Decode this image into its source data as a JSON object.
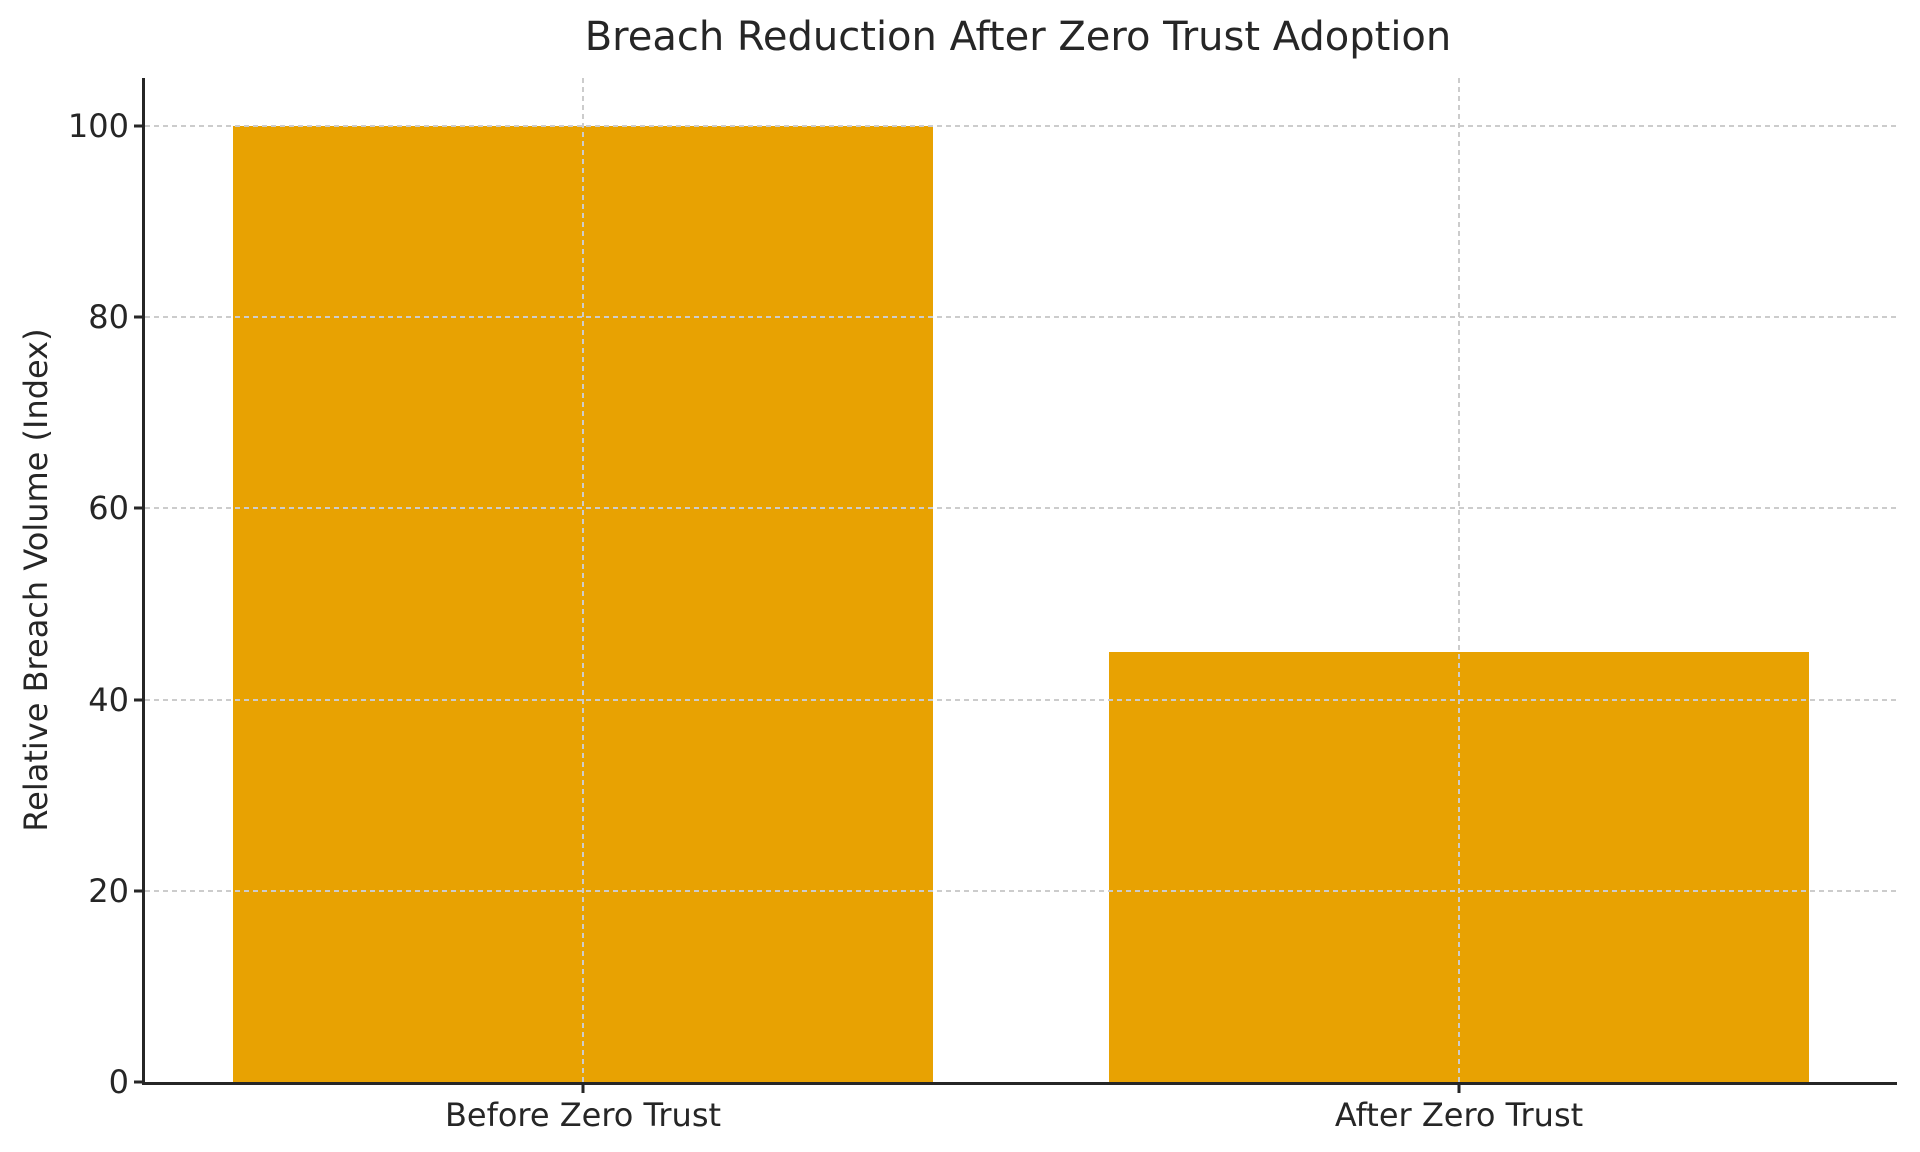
{
  "figure": {
    "background_color": "#ffffff",
    "text_color": "#262626",
    "spine_color": "#262626",
    "grid_color": "#cccccc"
  },
  "chart_data": {
    "type": "bar",
    "title": "Breach Reduction After Zero Trust Adoption",
    "xlabel": "",
    "ylabel": "Relative Breach Volume (Index)",
    "categories": [
      "Before Zero Trust",
      "After Zero Trust"
    ],
    "values": [
      100,
      45
    ],
    "bar_color": "#E8A202",
    "ylim": [
      0,
      105
    ],
    "yticks": [
      0,
      20,
      40,
      60,
      80,
      100
    ],
    "bar_width_fraction": 0.8,
    "grid": {
      "visible": true,
      "line_style": "dashed",
      "horizontal_at": [
        20,
        40,
        60,
        80,
        100
      ],
      "vertical_at_category_centers": true,
      "drawn_above_bars": true
    },
    "legend": "none",
    "spines": [
      "left",
      "bottom"
    ]
  }
}
